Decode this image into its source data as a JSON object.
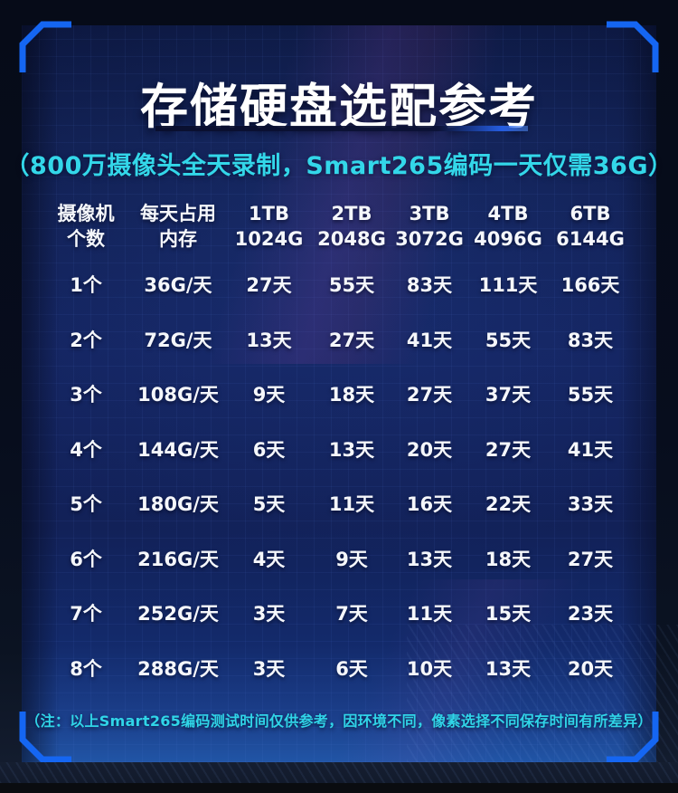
{
  "theme": {
    "accent_blue": "#1566f2",
    "cyan": "#33d7e9",
    "panel_navy": "#13235e",
    "text_white": "#ffffff"
  },
  "header": {
    "title": "存储硬盘选配参考",
    "subtitle": "（800万摄像头全天录制，Smart265编码一天仅需36G）"
  },
  "footer": {
    "note": "（注：以上Smart265编码测试时间仅供参考，因环境不同，像素选择不同保存时间有所差异）"
  },
  "chart_data": {
    "type": "table",
    "title": "存储硬盘选配参考",
    "subtitle": "（800万摄像头全天录制，Smart265编码一天仅需36G）",
    "columns": [
      {
        "line1": "摄像机",
        "line2": "个数"
      },
      {
        "line1": "每天占用",
        "line2": "内存"
      },
      {
        "line1": "1TB",
        "line2": "1024G"
      },
      {
        "line1": "2TB",
        "line2": "2048G"
      },
      {
        "line1": "3TB",
        "line2": "3072G"
      },
      {
        "line1": "4TB",
        "line2": "4096G"
      },
      {
        "line1": "6TB",
        "line2": "6144G"
      }
    ],
    "rows": [
      [
        "1个",
        "36G/天",
        "27天",
        "55天",
        "83天",
        "111天",
        "166天"
      ],
      [
        "2个",
        "72G/天",
        "13天",
        "27天",
        "41天",
        "55天",
        "83天"
      ],
      [
        "3个",
        "108G/天",
        "9天",
        "18天",
        "27天",
        "37天",
        "55天"
      ],
      [
        "4个",
        "144G/天",
        "6天",
        "13天",
        "20天",
        "27天",
        "41天"
      ],
      [
        "5个",
        "180G/天",
        "5天",
        "11天",
        "16天",
        "22天",
        "33天"
      ],
      [
        "6个",
        "216G/天",
        "4天",
        "9天",
        "13天",
        "18天",
        "27天"
      ],
      [
        "7个",
        "252G/天",
        "3天",
        "7天",
        "11天",
        "15天",
        "23天"
      ],
      [
        "8个",
        "288G/天",
        "3天",
        "6天",
        "10天",
        "13天",
        "20天"
      ]
    ],
    "note": "（注：以上Smart265编码测试时间仅供参考，因环境不同，像素选择不同保存时间有所差异）"
  }
}
